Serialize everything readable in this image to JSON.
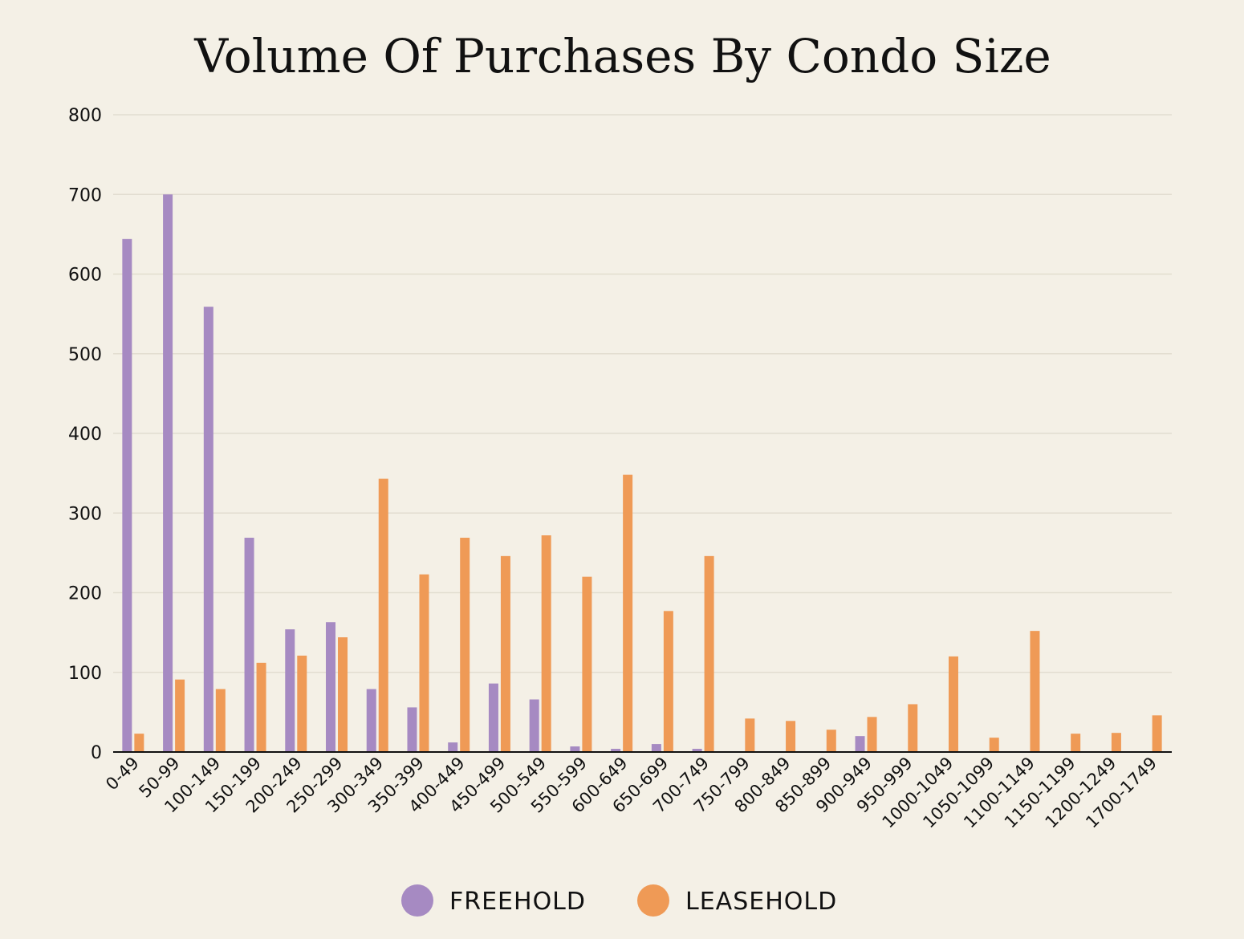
{
  "chart_data": {
    "type": "bar",
    "title": "Volume Of Purchases By Condo Size",
    "xlabel": "",
    "ylabel": "",
    "ylim": [
      0,
      800
    ],
    "yticks": [
      0,
      100,
      200,
      300,
      400,
      500,
      600,
      700,
      800
    ],
    "grid": true,
    "legend_position": "bottom-center",
    "categories": [
      "0-49",
      "50-99",
      "100-149",
      "150-199",
      "200-249",
      "250-299",
      "300-349",
      "350-399",
      "400-449",
      "450-499",
      "500-549",
      "550-599",
      "600-649",
      "650-699",
      "700-749",
      "750-799",
      "800-849",
      "850-899",
      "900-949",
      "950-999",
      "1000-1049",
      "1050-1099",
      "1100-1149",
      "1150-1199",
      "1200-1249",
      "1700-1749"
    ],
    "series": [
      {
        "name": "FREEHOLD",
        "color": "#a68ac2",
        "values": [
          644,
          700,
          559,
          269,
          154,
          163,
          79,
          56,
          12,
          86,
          66,
          7,
          4,
          10,
          4,
          0,
          0,
          0,
          20,
          0,
          0,
          0,
          0,
          0,
          0,
          0
        ]
      },
      {
        "name": "LEASEHOLD",
        "color": "#ef9a56",
        "values": [
          23,
          91,
          79,
          112,
          121,
          144,
          343,
          223,
          269,
          246,
          272,
          220,
          348,
          177,
          246,
          42,
          39,
          28,
          44,
          60,
          120,
          18,
          152,
          23,
          24,
          46
        ]
      }
    ]
  }
}
